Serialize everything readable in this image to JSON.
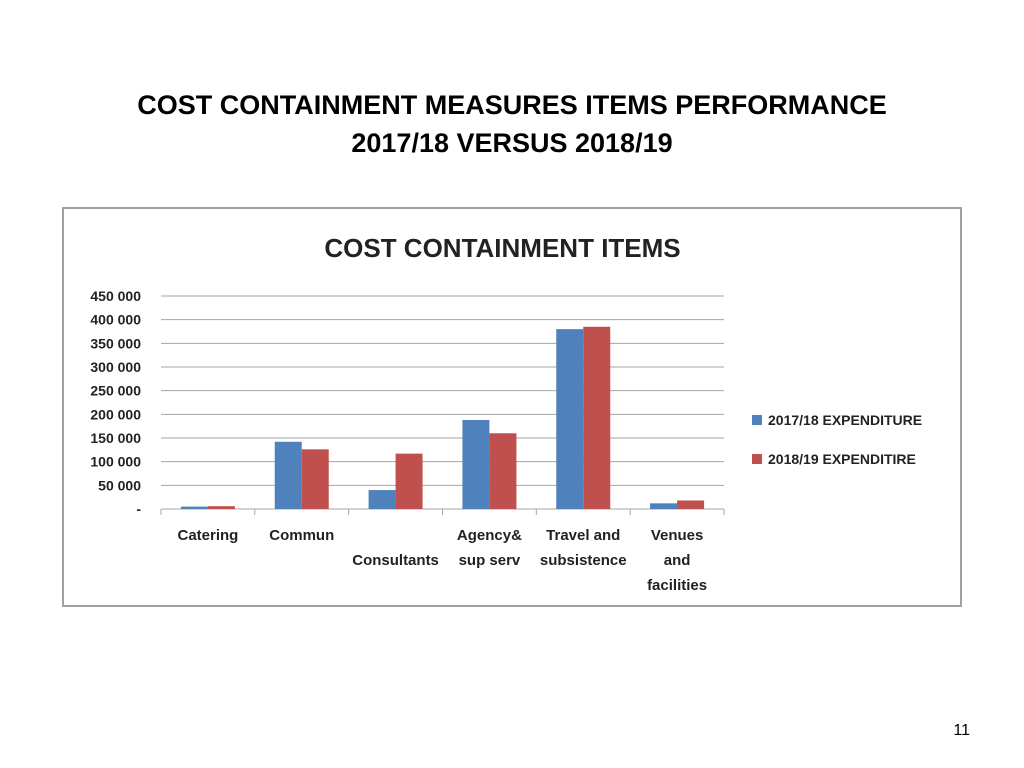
{
  "slide": {
    "title_line1": "COST CONTAINMENT MEASURES ITEMS PERFORMANCE",
    "title_line2": "2017/18 VERSUS 2018/19",
    "page_number": "11"
  },
  "colors": {
    "series1": "#4f81bd",
    "series2": "#c0504d",
    "gridline": "#a6a6a6",
    "frame": "#a0a0a0"
  },
  "chart_data": {
    "type": "bar",
    "title": "COST CONTAINMENT ITEMS",
    "categories": [
      [
        "Catering"
      ],
      [
        "Commun"
      ],
      [
        "",
        "Consultants"
      ],
      [
        "Agency&",
        "sup  serv"
      ],
      [
        "Travel and",
        "subsistence"
      ],
      [
        "Venues",
        "and",
        "facilities"
      ]
    ],
    "series": [
      {
        "name": "2017/18 EXPENDITURE",
        "color": "#4f81bd",
        "values": [
          5000,
          142000,
          40000,
          188000,
          380000,
          12000
        ]
      },
      {
        "name": "2018/19 EXPENDITIRE",
        "color": "#c0504d",
        "values": [
          6000,
          126000,
          117000,
          160000,
          385000,
          18000
        ]
      }
    ],
    "yticks": [
      0,
      50000,
      100000,
      150000,
      200000,
      250000,
      300000,
      350000,
      400000,
      450000
    ],
    "ytick_labels": [
      "-",
      "50 000",
      "100 000",
      "150 000",
      "200 000",
      "250 000",
      "300 000",
      "350 000",
      "400 000",
      "450 000"
    ],
    "ylim": [
      0,
      450000
    ],
    "grid": true,
    "legend_position": "right"
  }
}
